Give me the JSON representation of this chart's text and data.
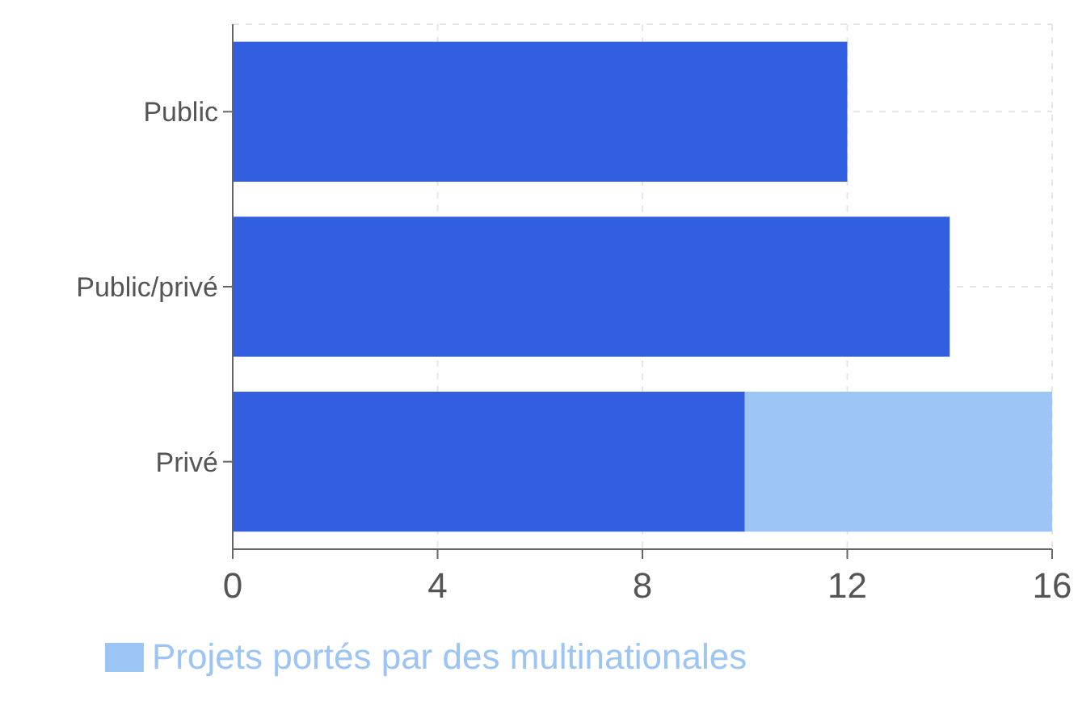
{
  "chart_data": {
    "type": "bar",
    "orientation": "horizontal",
    "stacked": true,
    "categories": [
      "Public",
      "Public/privé",
      "Privé"
    ],
    "series": [
      {
        "color": "#315fe0",
        "values": [
          12,
          14,
          10
        ]
      },
      {
        "name": "Projets portés par des multinationales",
        "color": "#9cc4f5",
        "values": [
          0,
          0,
          6
        ]
      }
    ],
    "xlim": [
      0,
      16
    ],
    "xticks": [
      0,
      4,
      8,
      12,
      16
    ],
    "grid": true,
    "legend": "bottom left"
  }
}
